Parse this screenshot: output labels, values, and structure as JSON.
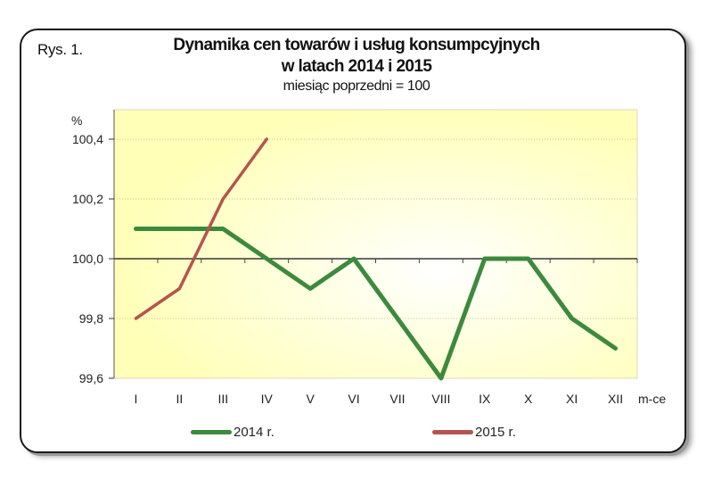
{
  "figure": {
    "label": "Rys. 1.",
    "title_line1": "Dynamika cen towarów i usług konsumpcyjnych",
    "title_line2": "w latach 2014 i 2015",
    "subtitle": "miesiąc poprzedni = 100"
  },
  "axes": {
    "y_unit": "%",
    "x_unit": "m-ce",
    "y_ticks": [
      "100,4",
      "100,2",
      "100,0",
      "99,8",
      "99,6"
    ]
  },
  "legend": {
    "items": [
      {
        "label": "2014 r.",
        "color": "#3c8a3c"
      },
      {
        "label": "2015 r.",
        "color": "#b5544e"
      }
    ]
  },
  "colors": {
    "series_2014": "#3c8a3c",
    "series_2015": "#b5544e",
    "plot_bg_edge": "#ffffb8",
    "plot_bg_center": "#ffffff"
  },
  "chart_data": {
    "type": "line",
    "title": "Dynamika cen towarów i usług konsumpcyjnych w latach 2014 i 2015",
    "subtitle": "miesiąc poprzedni = 100",
    "xlabel": "m-ce",
    "ylabel": "%",
    "categories": [
      "I",
      "II",
      "III",
      "IV",
      "V",
      "VI",
      "VII",
      "VIII",
      "IX",
      "X",
      "XI",
      "XII"
    ],
    "series": [
      {
        "name": "2014 r.",
        "color": "#3c8a3c",
        "values": [
          100.1,
          100.1,
          100.1,
          100.0,
          99.9,
          100.0,
          99.8,
          99.6,
          100.0,
          100.0,
          99.8,
          99.7
        ]
      },
      {
        "name": "2015 r.",
        "color": "#b5544e",
        "values": [
          99.8,
          99.9,
          100.2,
          100.4,
          null,
          null,
          null,
          null,
          null,
          null,
          null,
          null
        ]
      }
    ],
    "ylim": [
      99.6,
      100.45
    ],
    "yticks": [
      99.6,
      99.8,
      100.0,
      100.2,
      100.4
    ],
    "grid": "horizontal dotted",
    "baseline": 100.0,
    "legend_position": "bottom"
  }
}
